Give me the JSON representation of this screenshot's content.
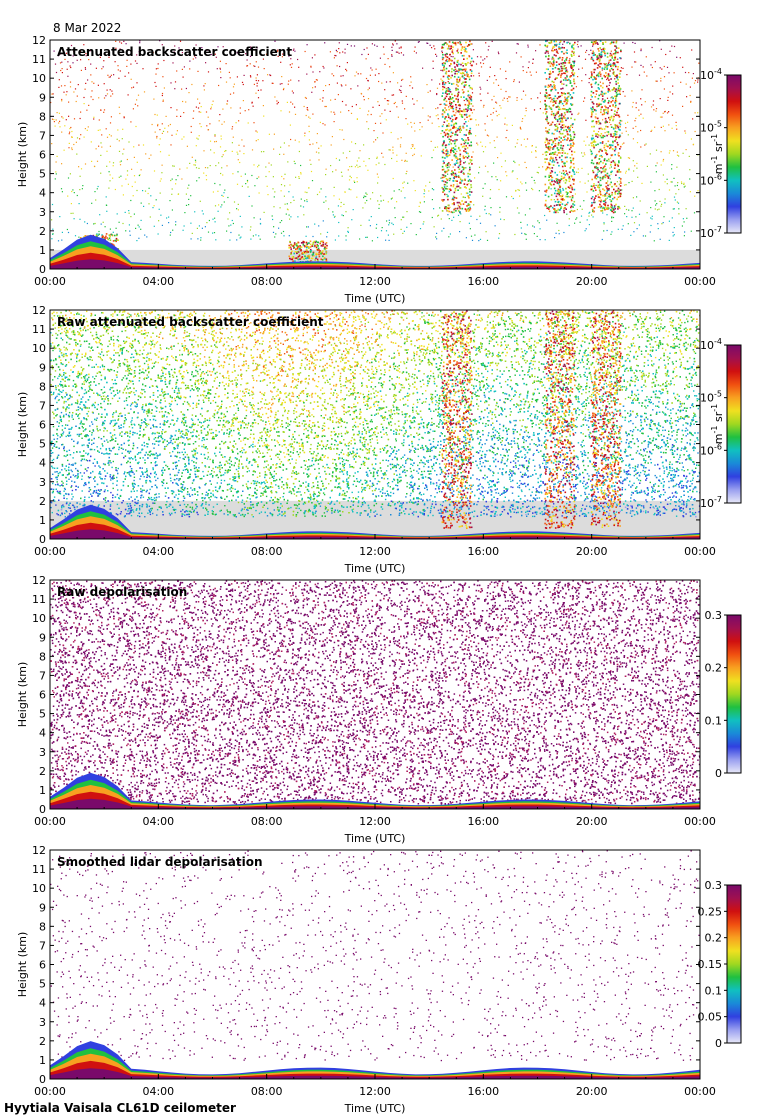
{
  "date_label": "8 Mar 2022",
  "footer": "Hyytiala Vaisala CL61D ceilometer",
  "chart_data": [
    {
      "type": "heatmap",
      "title": "Attenuated backscatter coefficient",
      "xlabel": "Time (UTC)",
      "ylabel": "Height (km)",
      "xticks": [
        "00:00",
        "04:00",
        "08:00",
        "12:00",
        "16:00",
        "20:00",
        "00:00"
      ],
      "xlim_hours": [
        0,
        24
      ],
      "ylim": [
        0,
        12
      ],
      "yticks": [
        0,
        1,
        2,
        3,
        4,
        5,
        6,
        7,
        8,
        9,
        10,
        11,
        12
      ],
      "colorbar": {
        "scale": "log",
        "range": [
          1e-07,
          0.0001
        ],
        "ticks": [
          "10-7",
          "10-6",
          "10-5",
          "10-4"
        ],
        "unit": "m-1 sr-1"
      },
      "noise": "sparse",
      "boundary_layer_top_km": 0.4,
      "shading_top_km": 1.0,
      "features": [
        {
          "time_h": 1.8,
          "height_km": [
            0.3,
            1.9
          ]
        },
        {
          "time_h": 9.5,
          "height_km": [
            0.2,
            1.5
          ]
        },
        {
          "time_h": 15.0,
          "height_km": [
            3.0,
            12.0
          ]
        },
        {
          "time_h": 18.8,
          "height_km": [
            3.0,
            12.0
          ]
        },
        {
          "time_h": 20.5,
          "height_km": [
            3.0,
            12.0
          ]
        }
      ]
    },
    {
      "type": "heatmap",
      "title": "Raw attenuated backscatter coefficient",
      "xlabel": "Time (UTC)",
      "ylabel": "Height (km)",
      "xticks": [
        "00:00",
        "04:00",
        "08:00",
        "12:00",
        "16:00",
        "20:00",
        "00:00"
      ],
      "xlim_hours": [
        0,
        24
      ],
      "ylim": [
        0,
        12
      ],
      "yticks": [
        0,
        1,
        2,
        3,
        4,
        5,
        6,
        7,
        8,
        9,
        10,
        11,
        12
      ],
      "colorbar": {
        "scale": "log",
        "range": [
          1e-07,
          0.0001
        ],
        "ticks": [
          "10-7",
          "10-6",
          "10-5",
          "10-4"
        ],
        "unit": "m-1 sr-1"
      },
      "noise": "dense",
      "boundary_layer_top_km": 0.4,
      "shading_top_km": 2.0,
      "features": [
        {
          "time_h": 15.0,
          "height_km": [
            0.6,
            12.0
          ]
        },
        {
          "time_h": 18.8,
          "height_km": [
            0.6,
            12.0
          ]
        },
        {
          "time_h": 20.5,
          "height_km": [
            0.6,
            12.0
          ]
        }
      ]
    },
    {
      "type": "heatmap",
      "title": "Raw depolarisation",
      "xlabel": "Time (UTC)",
      "ylabel": "Height (km)",
      "xticks": [
        "00:00",
        "04:00",
        "08:00",
        "12:00",
        "16:00",
        "20:00",
        "00:00"
      ],
      "xlim_hours": [
        0,
        24
      ],
      "ylim": [
        0,
        12
      ],
      "yticks": [
        0,
        1,
        2,
        3,
        4,
        5,
        6,
        7,
        8,
        9,
        10,
        11,
        12
      ],
      "colorbar": {
        "scale": "linear",
        "range": [
          0,
          0.3
        ],
        "ticks": [
          "0",
          "0.1",
          "0.2",
          "0.3"
        ]
      },
      "noise": "purple",
      "boundary_layer_top_km": 0.5
    },
    {
      "type": "heatmap",
      "title": "Smoothed lidar depolarisation",
      "xlabel": "Time (UTC)",
      "ylabel": "Height (km)",
      "xticks": [
        "00:00",
        "04:00",
        "08:00",
        "12:00",
        "16:00",
        "20:00",
        "00:00"
      ],
      "xlim_hours": [
        0,
        24
      ],
      "ylim": [
        0,
        12
      ],
      "yticks": [
        0,
        1,
        2,
        3,
        4,
        5,
        6,
        7,
        8,
        9,
        10,
        11,
        12
      ],
      "colorbar": {
        "scale": "linear",
        "range": [
          0,
          0.3
        ],
        "ticks": [
          "0",
          "0.05",
          "0.1",
          "0.15",
          "0.2",
          "0.25",
          "0.3"
        ]
      },
      "noise": "sparse-purple",
      "boundary_layer_top_km": 0.6
    }
  ],
  "colormap": [
    "#e8e8f8",
    "#9aa0f0",
    "#3040e0",
    "#1a8ad8",
    "#10c0c0",
    "#20c040",
    "#a0d820",
    "#f0e020",
    "#f8a020",
    "#f05010",
    "#d01010",
    "#a01050",
    "#7a0a6a"
  ]
}
